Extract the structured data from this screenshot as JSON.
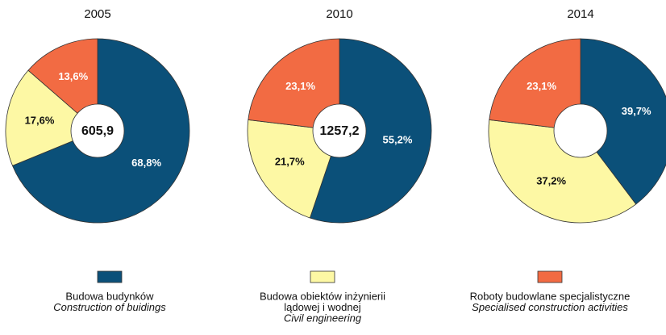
{
  "chart_data": [
    {
      "type": "pie",
      "title": "2005",
      "center_label": "605,9",
      "values": [
        68.8,
        17.6,
        13.6
      ],
      "value_labels": [
        "68,8%",
        "17,6%",
        "13,6%"
      ],
      "colors": [
        "#0b5079",
        "#fdf8a4",
        "#f26b43"
      ]
    },
    {
      "type": "pie",
      "title": "2010",
      "center_label": "1257,2",
      "values": [
        55.2,
        21.7,
        23.1
      ],
      "value_labels": [
        "55,2%",
        "21,7%",
        "23,1%"
      ],
      "colors": [
        "#0b5079",
        "#fdf8a4",
        "#f26b43"
      ]
    },
    {
      "type": "pie",
      "title": "2014",
      "values": [
        39.7,
        37.2,
        23.1
      ],
      "value_labels": [
        "39,7%",
        "37,2%",
        "23,1%"
      ],
      "colors": [
        "#0b5079",
        "#fdf8a4",
        "#f26b43"
      ]
    }
  ],
  "legend": {
    "entries": [
      {
        "color": "#0b5079",
        "lines": [
          "Budowa budynków"
        ],
        "translation": [
          "Construction of buidings"
        ]
      },
      {
        "color": "#fdf8a4",
        "lines": [
          "Budowa obiektów inżynierii",
          "lądowej i wodnej"
        ],
        "translation": [
          "Civil engineering"
        ]
      },
      {
        "color": "#f26b43",
        "lines": [
          "Roboty budowlane specjalistyczne"
        ],
        "translation": [
          "Specialised construction activities"
        ]
      }
    ]
  }
}
